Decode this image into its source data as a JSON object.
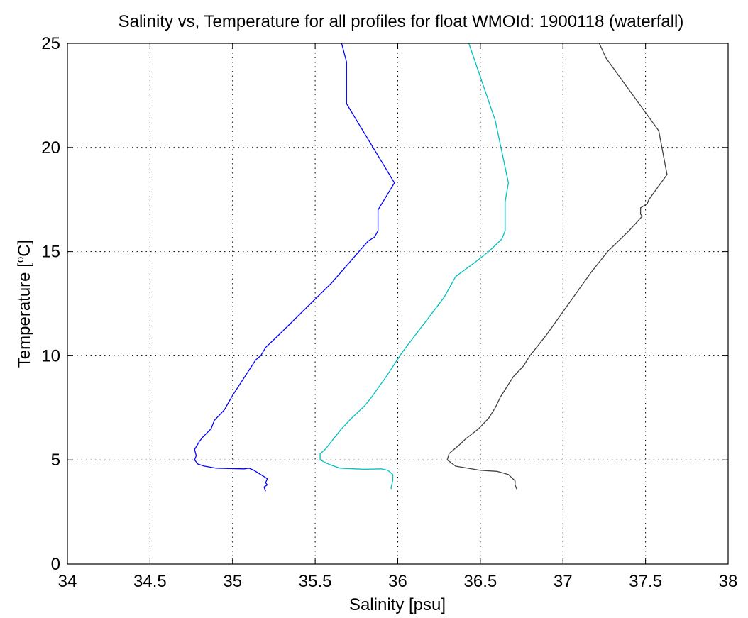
{
  "chart_data": {
    "type": "line",
    "title": "Salinity vs, Temperature for all profiles for float WMOId: 1900118 (waterfall)",
    "xlabel": "Salinity [psu]",
    "ylabel_main": "Temperature [",
    "ylabel_sup": "o",
    "ylabel_tail": "C]",
    "xlim": [
      34,
      38
    ],
    "ylim": [
      0,
      25
    ],
    "x_ticks": [
      "34",
      "34.5",
      "35",
      "35.5",
      "36",
      "36.5",
      "37",
      "37.5",
      "38"
    ],
    "y_ticks": [
      "0",
      "5",
      "10",
      "15",
      "20",
      "25"
    ],
    "grid": true,
    "series": [
      {
        "color": "#0000ff",
        "points": [
          [
            35.66,
            25
          ],
          [
            35.69,
            24.1
          ],
          [
            35.69,
            22.1
          ],
          [
            35.98,
            18.3
          ],
          [
            35.88,
            17.0
          ],
          [
            35.88,
            16.0
          ],
          [
            35.86,
            15.7
          ],
          [
            35.82,
            15.5
          ],
          [
            35.6,
            13.5
          ],
          [
            35.28,
            11.0
          ],
          [
            35.2,
            10.4
          ],
          [
            35.17,
            10.0
          ],
          [
            35.14,
            9.8
          ],
          [
            35.0,
            8.1
          ],
          [
            34.95,
            7.4
          ],
          [
            34.89,
            6.9
          ],
          [
            34.87,
            6.5
          ],
          [
            34.82,
            6.1
          ],
          [
            34.8,
            5.9
          ],
          [
            34.77,
            5.5
          ],
          [
            34.78,
            5.2
          ],
          [
            34.77,
            5.0
          ],
          [
            34.79,
            4.8
          ],
          [
            34.83,
            4.7
          ],
          [
            34.9,
            4.6
          ],
          [
            35.0,
            4.58
          ],
          [
            35.07,
            4.57
          ],
          [
            35.1,
            4.6
          ],
          [
            35.13,
            4.5
          ],
          [
            35.17,
            4.3
          ],
          [
            35.21,
            4.1
          ],
          [
            35.2,
            3.9
          ],
          [
            35.21,
            3.8
          ],
          [
            35.19,
            3.7
          ],
          [
            35.2,
            3.5
          ]
        ]
      },
      {
        "color": "#00c0c0",
        "points": [
          [
            36.43,
            25
          ],
          [
            36.59,
            21.3
          ],
          [
            36.67,
            18.3
          ],
          [
            36.65,
            17.4
          ],
          [
            36.65,
            16.0
          ],
          [
            36.63,
            15.6
          ],
          [
            36.55,
            15.0
          ],
          [
            36.47,
            14.5
          ],
          [
            36.35,
            13.8
          ],
          [
            36.28,
            12.8
          ],
          [
            36.03,
            10.2
          ],
          [
            35.93,
            9.0
          ],
          [
            35.84,
            8.0
          ],
          [
            35.8,
            7.6
          ],
          [
            35.72,
            7.0
          ],
          [
            35.66,
            6.5
          ],
          [
            35.61,
            6.0
          ],
          [
            35.56,
            5.5
          ],
          [
            35.53,
            5.3
          ],
          [
            35.53,
            5.0
          ],
          [
            35.58,
            4.8
          ],
          [
            35.65,
            4.6
          ],
          [
            35.8,
            4.55
          ],
          [
            35.9,
            4.57
          ],
          [
            35.94,
            4.5
          ],
          [
            35.97,
            4.3
          ],
          [
            35.97,
            4.0
          ],
          [
            35.96,
            3.7
          ],
          [
            35.96,
            3.6
          ]
        ]
      },
      {
        "color": "#404040",
        "points": [
          [
            37.22,
            25
          ],
          [
            37.26,
            24.3
          ],
          [
            37.58,
            20.8
          ],
          [
            37.63,
            18.7
          ],
          [
            37.52,
            17.5
          ],
          [
            37.51,
            17.3
          ],
          [
            37.47,
            17.1
          ],
          [
            37.47,
            16.8
          ],
          [
            37.48,
            16.7
          ],
          [
            37.4,
            16.0
          ],
          [
            37.27,
            15.0
          ],
          [
            37.17,
            14.0
          ],
          [
            36.9,
            11.0
          ],
          [
            36.8,
            10.0
          ],
          [
            36.76,
            9.5
          ],
          [
            36.7,
            9.0
          ],
          [
            36.66,
            8.5
          ],
          [
            36.62,
            8.0
          ],
          [
            36.59,
            7.5
          ],
          [
            36.55,
            7.0
          ],
          [
            36.49,
            6.5
          ],
          [
            36.41,
            6.0
          ],
          [
            36.37,
            5.7
          ],
          [
            36.31,
            5.3
          ],
          [
            36.3,
            5.0
          ],
          [
            36.35,
            4.7
          ],
          [
            36.5,
            4.5
          ],
          [
            36.6,
            4.45
          ],
          [
            36.67,
            4.3
          ],
          [
            36.71,
            4.0
          ],
          [
            36.71,
            3.8
          ],
          [
            36.72,
            3.6
          ]
        ]
      }
    ]
  }
}
